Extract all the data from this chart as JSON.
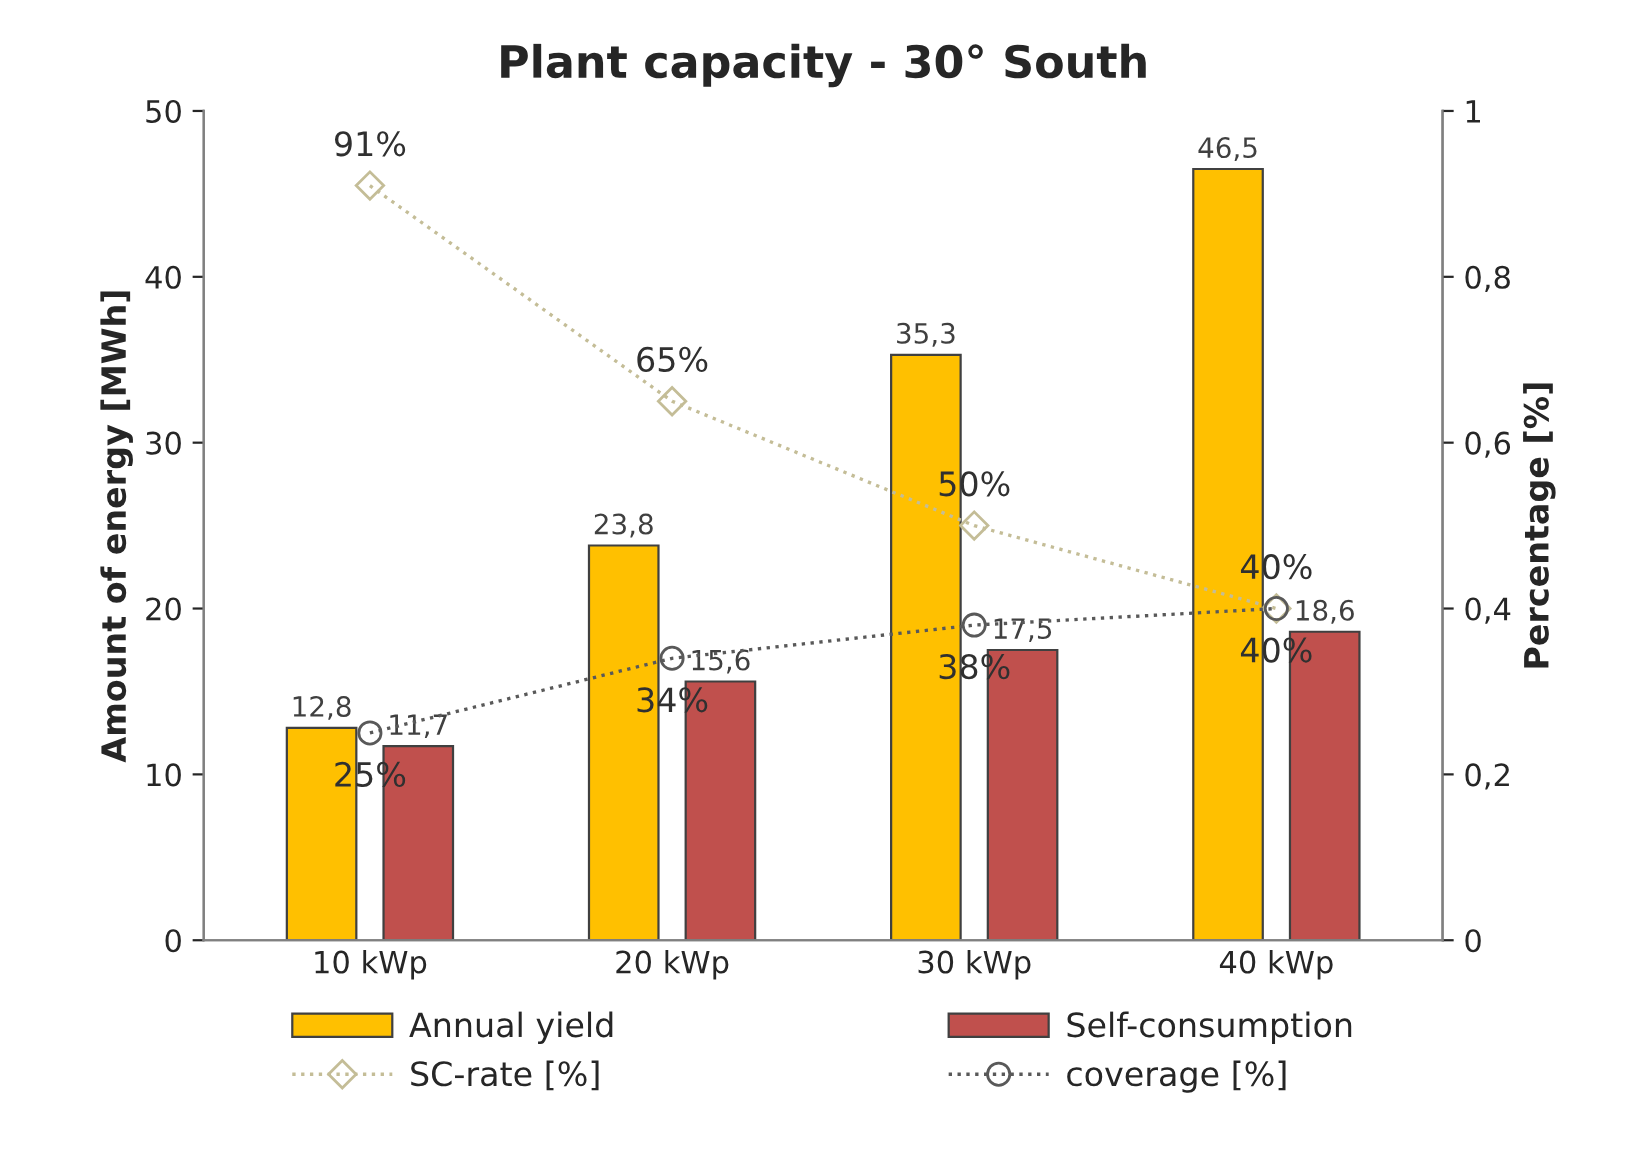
{
  "chart_data": {
    "type": "bar",
    "title": "Plant capacity - 30° South",
    "categories": [
      "10 kWp",
      "20 kWp",
      "30 kWp",
      "40 kWp"
    ],
    "ylabel": "Amount of energy [MWh]",
    "y2label": "Percentage [%]",
    "ylim": [
      0,
      50
    ],
    "yticks": [
      0,
      10,
      20,
      30,
      40,
      50
    ],
    "y2lim": [
      0,
      1
    ],
    "y2ticks": [
      0,
      {
        "value": 0.2,
        "label": "0,2"
      },
      {
        "value": 0.4,
        "label": "0,4"
      },
      {
        "value": 0.6,
        "label": "0,6"
      },
      {
        "value": 0.8,
        "label": "0,8"
      },
      1
    ],
    "series": [
      {
        "name": "Annual yield",
        "color": "#ffc000",
        "values": [
          12.8,
          23.8,
          35.3,
          46.5
        ],
        "value_labels": [
          "12,8",
          "23,8",
          "35,3",
          "46,5"
        ]
      },
      {
        "name": "Self-consumption",
        "color": "#c0504d",
        "values": [
          11.7,
          15.6,
          17.5,
          18.6
        ],
        "value_labels": [
          "11,7",
          "15,6",
          "17,5",
          "18,6"
        ]
      },
      {
        "name": "SC-rate [%]",
        "type": "line",
        "axis": "y2",
        "color": "#c4bd97",
        "marker": "diamond",
        "line_style": "dotted",
        "values": [
          0.91,
          0.65,
          0.5,
          0.4
        ],
        "value_labels": [
          "91%",
          "65%",
          "50%",
          "40%"
        ]
      },
      {
        "name": "coverage [%]",
        "type": "line",
        "axis": "y2",
        "color": "#595959",
        "marker": "circle",
        "line_style": "dotted",
        "values": [
          0.25,
          0.34,
          0.38,
          0.4
        ],
        "value_labels": [
          "25%",
          "34%",
          "38%",
          "40%"
        ]
      }
    ],
    "grid": false,
    "legend": "bottom"
  }
}
